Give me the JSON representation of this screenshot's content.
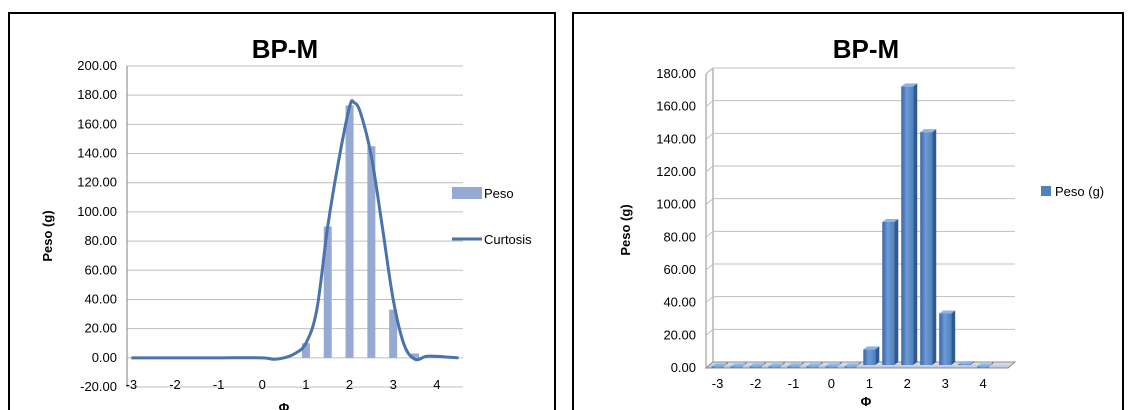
{
  "charts": [
    {
      "title": "BP-M",
      "xlabel": "Φ",
      "ylabel": "Peso (g)",
      "legend": {
        "bars": "Peso",
        "line": "Curtosis"
      }
    },
    {
      "title": "BP-M",
      "xlabel": "Φ",
      "ylabel": "Peso (g)",
      "legend": {
        "bars": "Peso (g)"
      }
    }
  ],
  "chart_data": [
    {
      "type": "bar",
      "title": "BP-M",
      "xlabel": "Φ",
      "ylabel": "Peso (g)",
      "x_ticks": [
        "-3",
        "-2",
        "-1",
        "0",
        "1",
        "2",
        "3",
        "4"
      ],
      "y_ticks": [
        "-20.00",
        "0.00",
        "20.00",
        "40.00",
        "60.00",
        "80.00",
        "100.00",
        "120.00",
        "140.00",
        "160.00",
        "180.00",
        "200.00"
      ],
      "ylim": [
        -20,
        200
      ],
      "xlim": [
        -3.1,
        4.6
      ],
      "grid": true,
      "legend_position": "right",
      "series": [
        {
          "name": "Peso",
          "kind": "bar",
          "color": "#95a9d3",
          "x": [
            -3,
            -2.5,
            -2,
            -1.5,
            -1,
            -0.5,
            0,
            0.5,
            1,
            1.5,
            2,
            2.5,
            3,
            3.5,
            4
          ],
          "values": [
            0,
            0,
            0,
            0,
            0,
            0,
            0,
            0,
            10,
            90,
            173,
            145,
            33,
            3,
            1
          ]
        },
        {
          "name": "Curtosis",
          "kind": "line",
          "color": "#4a72ac",
          "x": [
            -3,
            -2,
            -1,
            0,
            0.25,
            0.5,
            0.75,
            1,
            1.25,
            1.5,
            1.75,
            2,
            2.1,
            2.25,
            2.5,
            2.75,
            3,
            3.25,
            3.5,
            3.75,
            4,
            4.25,
            4.5
          ],
          "values": [
            0,
            0,
            0,
            0,
            -1,
            0,
            3,
            10,
            33,
            90,
            135,
            172,
            175,
            168,
            138,
            90,
            40,
            9,
            -1,
            1,
            1,
            0.5,
            0
          ]
        }
      ]
    },
    {
      "type": "bar",
      "title": "BP-M",
      "xlabel": "Φ",
      "ylabel": "Peso (g)",
      "x_ticks": [
        "-3",
        "-2",
        "-1",
        "0",
        "1",
        "2",
        "3",
        "4"
      ],
      "y_ticks": [
        "0.00",
        "20.00",
        "40.00",
        "60.00",
        "80.00",
        "100.00",
        "120.00",
        "140.00",
        "160.00",
        "180.00"
      ],
      "ylim": [
        0,
        180
      ],
      "grid": true,
      "legend_position": "right",
      "series": [
        {
          "name": "Peso (g)",
          "kind": "bar3d",
          "color": "#4f81bd",
          "x": [
            -3,
            -2.5,
            -2,
            -1.5,
            -1,
            -0.5,
            0,
            0.5,
            1,
            1.5,
            2,
            2.5,
            3,
            3.5,
            4
          ],
          "values": [
            0,
            0,
            0,
            0,
            0,
            0,
            0,
            1,
            12,
            90,
            173,
            145,
            34,
            3,
            1
          ]
        }
      ]
    }
  ]
}
